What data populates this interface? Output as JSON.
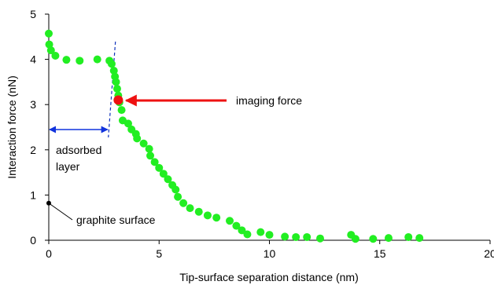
{
  "chart_data": {
    "type": "scatter",
    "title": "",
    "xlabel": "Tip-surface separation distance (nm)",
    "ylabel": "Interaction force (nN)",
    "xlim": [
      0,
      20
    ],
    "ylim": [
      0,
      5
    ],
    "x_ticks": [
      0,
      5,
      10,
      15,
      20
    ],
    "y_ticks": [
      0,
      1,
      2,
      3,
      4,
      5
    ],
    "grid": false,
    "legend": "none",
    "series": [
      {
        "color": "#22ee22",
        "points": [
          [
            0.0,
            4.57
          ],
          [
            0.02,
            4.33
          ],
          [
            0.1,
            4.2
          ],
          [
            0.3,
            4.08
          ],
          [
            0.8,
            3.99
          ],
          [
            1.4,
            3.97
          ],
          [
            2.2,
            4.0
          ],
          [
            2.75,
            3.97
          ],
          [
            2.85,
            3.9
          ],
          [
            2.95,
            3.75
          ],
          [
            3.0,
            3.62
          ],
          [
            3.05,
            3.5
          ],
          [
            3.1,
            3.35
          ],
          [
            3.15,
            3.2
          ],
          [
            3.2,
            3.05
          ],
          [
            3.3,
            2.88
          ],
          [
            3.35,
            2.65
          ],
          [
            3.6,
            2.58
          ],
          [
            3.75,
            2.45
          ],
          [
            3.95,
            2.35
          ],
          [
            4.0,
            2.25
          ],
          [
            4.3,
            2.14
          ],
          [
            4.55,
            2.02
          ],
          [
            4.6,
            1.87
          ],
          [
            4.8,
            1.73
          ],
          [
            5.0,
            1.6
          ],
          [
            5.2,
            1.47
          ],
          [
            5.4,
            1.35
          ],
          [
            5.6,
            1.22
          ],
          [
            5.75,
            1.12
          ],
          [
            5.85,
            0.96
          ],
          [
            6.1,
            0.82
          ],
          [
            6.4,
            0.71
          ],
          [
            6.8,
            0.63
          ],
          [
            7.2,
            0.55
          ],
          [
            7.6,
            0.5
          ],
          [
            8.2,
            0.43
          ],
          [
            8.5,
            0.32
          ],
          [
            8.75,
            0.22
          ],
          [
            9.0,
            0.13
          ],
          [
            9.6,
            0.18
          ],
          [
            10.0,
            0.12
          ],
          [
            10.7,
            0.08
          ],
          [
            11.2,
            0.07
          ],
          [
            11.7,
            0.07
          ],
          [
            12.3,
            0.04
          ],
          [
            13.7,
            0.12
          ],
          [
            13.9,
            0.03
          ],
          [
            14.7,
            0.03
          ],
          [
            15.4,
            0.05
          ],
          [
            16.3,
            0.07
          ],
          [
            16.8,
            0.05
          ]
        ]
      }
    ],
    "highlight_point": {
      "x": 3.15,
      "y": 3.1,
      "color": "#ee1111"
    },
    "surface_point": {
      "x": 0.0,
      "y": 0.82,
      "color": "#000000"
    },
    "adsorbed_layer_boundary_x": 2.7,
    "annotations": {
      "imaging_force": "imaging force",
      "adsorbed_layer_line1": "adsorbed",
      "adsorbed_layer_line2": "layer",
      "graphite_surface": "graphite surface"
    },
    "colors": {
      "arrow_red": "#ee1111",
      "arrow_blue": "#1133dd",
      "dashed_line": "#1133bb"
    }
  }
}
